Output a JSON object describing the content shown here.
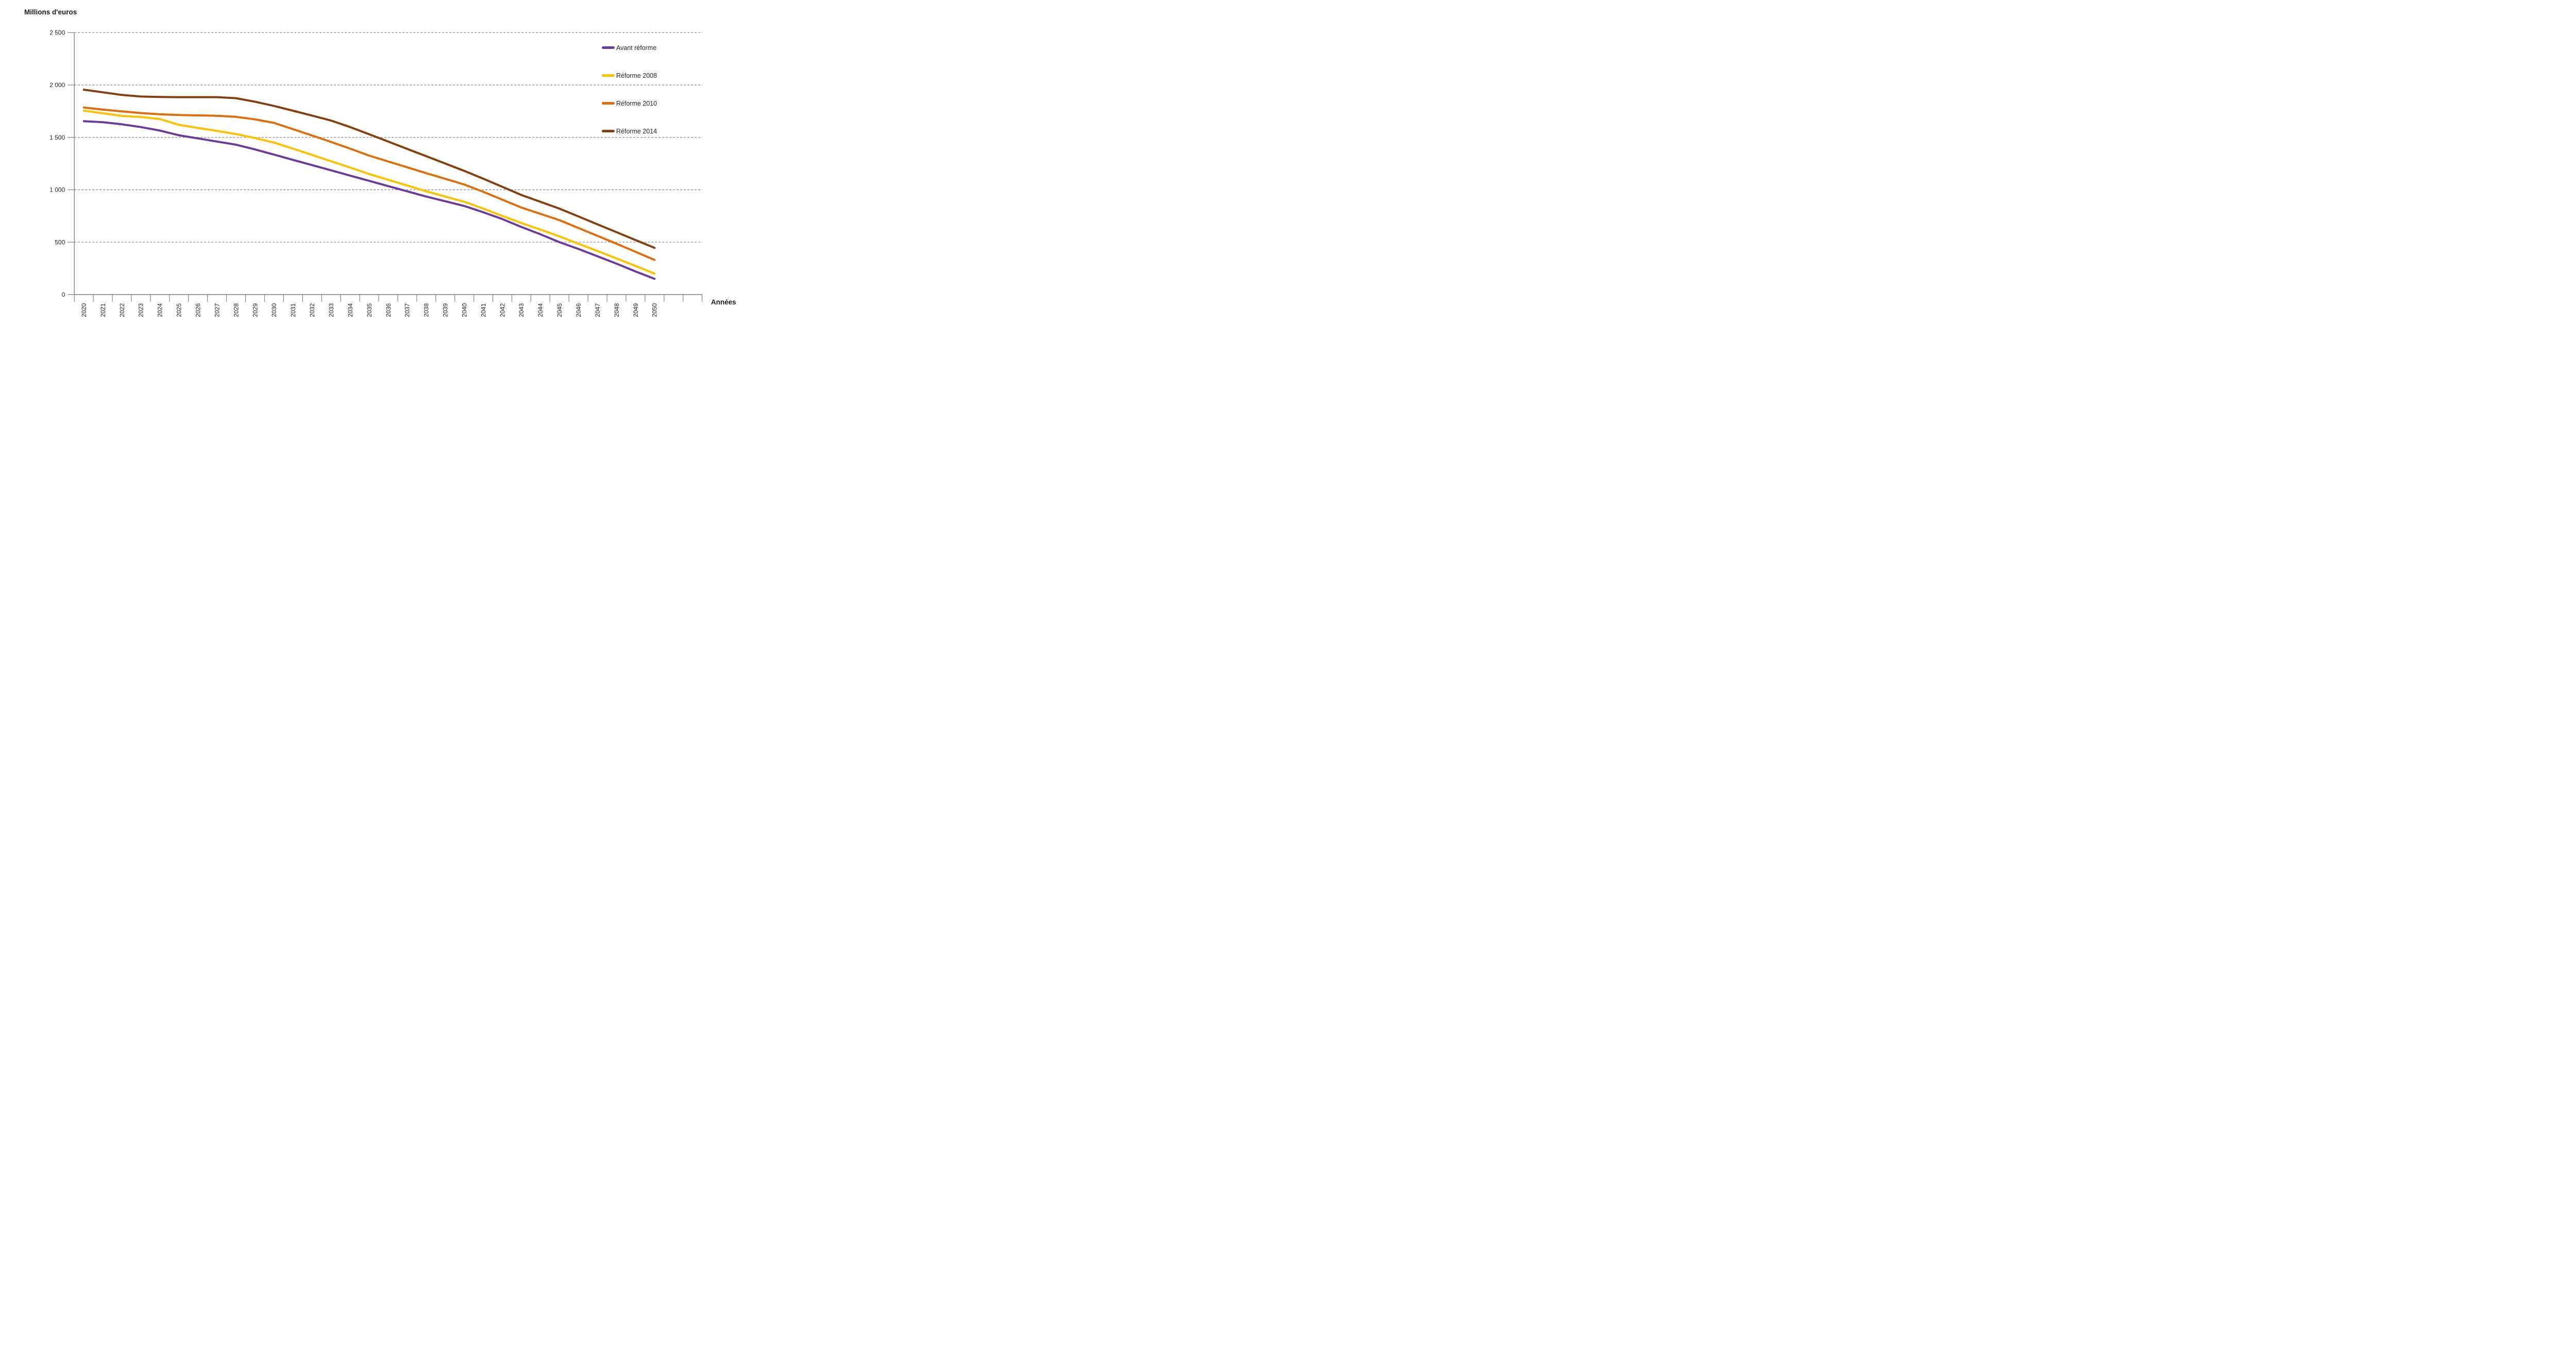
{
  "page": {
    "background": "#FFFFFF"
  },
  "chart_data": {
    "type": "line",
    "y_axis_title": "Millions d'euros",
    "x_axis_title": "Années",
    "ylim": [
      0,
      2500
    ],
    "y_tick_values": [
      2500,
      2000,
      1500,
      1000,
      500,
      0
    ],
    "y_tick_labels": [
      "2 500",
      "2 000",
      "1 500",
      "1 000",
      "500",
      "0"
    ],
    "grid": "horizontal-dashed",
    "legend_position": "right-inside",
    "categories": [
      "2020",
      "2021",
      "2022",
      "2023",
      "2024",
      "2025",
      "2026",
      "2027",
      "2028",
      "2029",
      "2030",
      "2031",
      "2032",
      "2033",
      "2034",
      "2035",
      "2036",
      "2037",
      "2038",
      "2039",
      "2040",
      "2041",
      "2042",
      "2043",
      "2044",
      "2045",
      "2046",
      "2047",
      "2048",
      "2049",
      "2050"
    ],
    "series": [
      {
        "name": "Avant réforme",
        "color": "#6C3A9E",
        "values": [
          1655,
          1645,
          1625,
          1598,
          1565,
          1520,
          1490,
          1460,
          1430,
          1385,
          1335,
          1285,
          1235,
          1185,
          1135,
          1085,
          1035,
          985,
          935,
          890,
          845,
          785,
          720,
          645,
          575,
          500,
          435,
          365,
          295,
          220,
          150
        ]
      },
      {
        "name": "Réforme 2008",
        "color": "#FFC000",
        "values": [
          1755,
          1730,
          1705,
          1695,
          1675,
          1620,
          1590,
          1562,
          1532,
          1493,
          1450,
          1392,
          1332,
          1272,
          1212,
          1150,
          1095,
          1040,
          985,
          935,
          885,
          820,
          750,
          682,
          620,
          555,
          485,
          415,
          345,
          272,
          200
        ]
      },
      {
        "name": "Réforme 2010",
        "color": "#E36C0A",
        "values": [
          1785,
          1765,
          1748,
          1732,
          1720,
          1714,
          1710,
          1706,
          1696,
          1672,
          1638,
          1578,
          1518,
          1456,
          1392,
          1326,
          1270,
          1214,
          1158,
          1104,
          1050,
          980,
          905,
          830,
          770,
          710,
          635,
          560,
          485,
          408,
          330
        ]
      },
      {
        "name": "Réforme 2014",
        "color": "#873D0C",
        "values": [
          1955,
          1930,
          1905,
          1890,
          1886,
          1884,
          1884,
          1884,
          1874,
          1840,
          1800,
          1754,
          1708,
          1660,
          1598,
          1530,
          1460,
          1390,
          1320,
          1250,
          1180,
          1105,
          1028,
          950,
          885,
          820,
          745,
          670,
          595,
          520,
          445
        ]
      }
    ],
    "colors": {
      "gridline": "#7F7F7F",
      "axis": "#808080",
      "tick_text": "#262626",
      "title_text": "#1A1A1A"
    }
  }
}
